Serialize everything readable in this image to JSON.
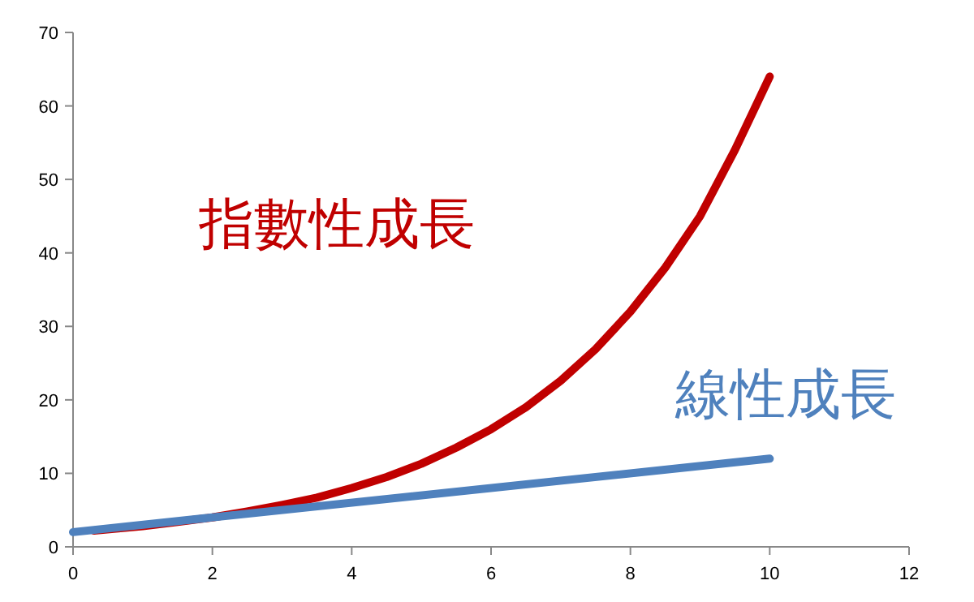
{
  "chart_data": {
    "type": "line",
    "xlim": [
      0,
      12
    ],
    "xticks": [
      0,
      2,
      4,
      6,
      8,
      10,
      12
    ],
    "ylim": [
      0,
      70
    ],
    "yticks": [
      0,
      10,
      20,
      30,
      40,
      50,
      60,
      70
    ],
    "grid": false,
    "marker": "none",
    "line_style": "solid",
    "series": [
      {
        "name": "指數性成長",
        "color": "#c00000",
        "x": [
          0.3,
          1,
          1.5,
          2,
          2.5,
          3,
          3.5,
          4,
          4.5,
          5,
          5.5,
          6,
          6.5,
          7,
          7.5,
          8,
          8.5,
          9,
          9.5,
          10
        ],
        "values": [
          2.2,
          2.8,
          3.4,
          4,
          4.8,
          5.7,
          6.7,
          8,
          9.5,
          11.3,
          13.5,
          16,
          19,
          22.6,
          26.9,
          32,
          38,
          45,
          54,
          64
        ]
      },
      {
        "name": "線性成長",
        "color": "#4f81bd",
        "x": [
          0,
          10
        ],
        "values": [
          2,
          12
        ]
      }
    ]
  }
}
